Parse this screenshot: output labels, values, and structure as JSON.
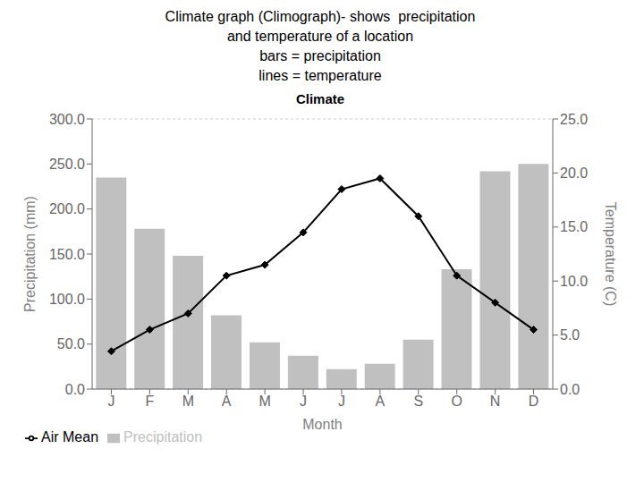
{
  "chart_data": {
    "type": "bar",
    "title": "Climate",
    "annotations": [
      "Climate graph (Climograph)- shows  precipitation",
      "and temperature of a location",
      "bars = precipitation",
      "lines = temperature"
    ],
    "xlabel": "Month",
    "ylabel": "Precipitation (mm)",
    "y2label": "Temperature (C)",
    "categories": [
      "J",
      "F",
      "M",
      "A",
      "M",
      "J",
      "J",
      "A",
      "S",
      "O",
      "N",
      "D"
    ],
    "series": [
      {
        "name": "Precipitation",
        "type": "bar",
        "color": "#c0c0c0",
        "values": [
          235,
          178,
          148,
          82,
          52,
          37,
          22,
          28,
          55,
          133,
          242,
          250
        ]
      },
      {
        "name": "Air Mean",
        "type": "line",
        "color": "#000000",
        "marker": "diamond",
        "axis": "y2",
        "values": [
          3.5,
          5.5,
          7.0,
          10.5,
          11.5,
          14.5,
          18.5,
          19.5,
          16.0,
          10.5,
          8.0,
          5.5
        ]
      }
    ],
    "ylim": [
      0,
      300
    ],
    "yticks": [
      {
        "value": 0,
        "label": "0.0"
      },
      {
        "value": 50,
        "label": "50.0"
      },
      {
        "value": 100,
        "label": "100.0"
      },
      {
        "value": 150,
        "label": "150.0"
      },
      {
        "value": 200,
        "label": "200.0"
      },
      {
        "value": 250,
        "label": "250.0"
      },
      {
        "value": 300,
        "label": "300.0"
      }
    ],
    "y2lim": [
      0,
      25
    ],
    "y2ticks": [
      {
        "value": 0,
        "label": "0.0"
      },
      {
        "value": 5,
        "label": "5.0"
      },
      {
        "value": 10,
        "label": "10.0"
      },
      {
        "value": 15,
        "label": "15.0"
      },
      {
        "value": 20,
        "label": "20.0"
      },
      {
        "value": 25,
        "label": "25.0"
      }
    ],
    "grid": true,
    "legend": "bottom"
  }
}
